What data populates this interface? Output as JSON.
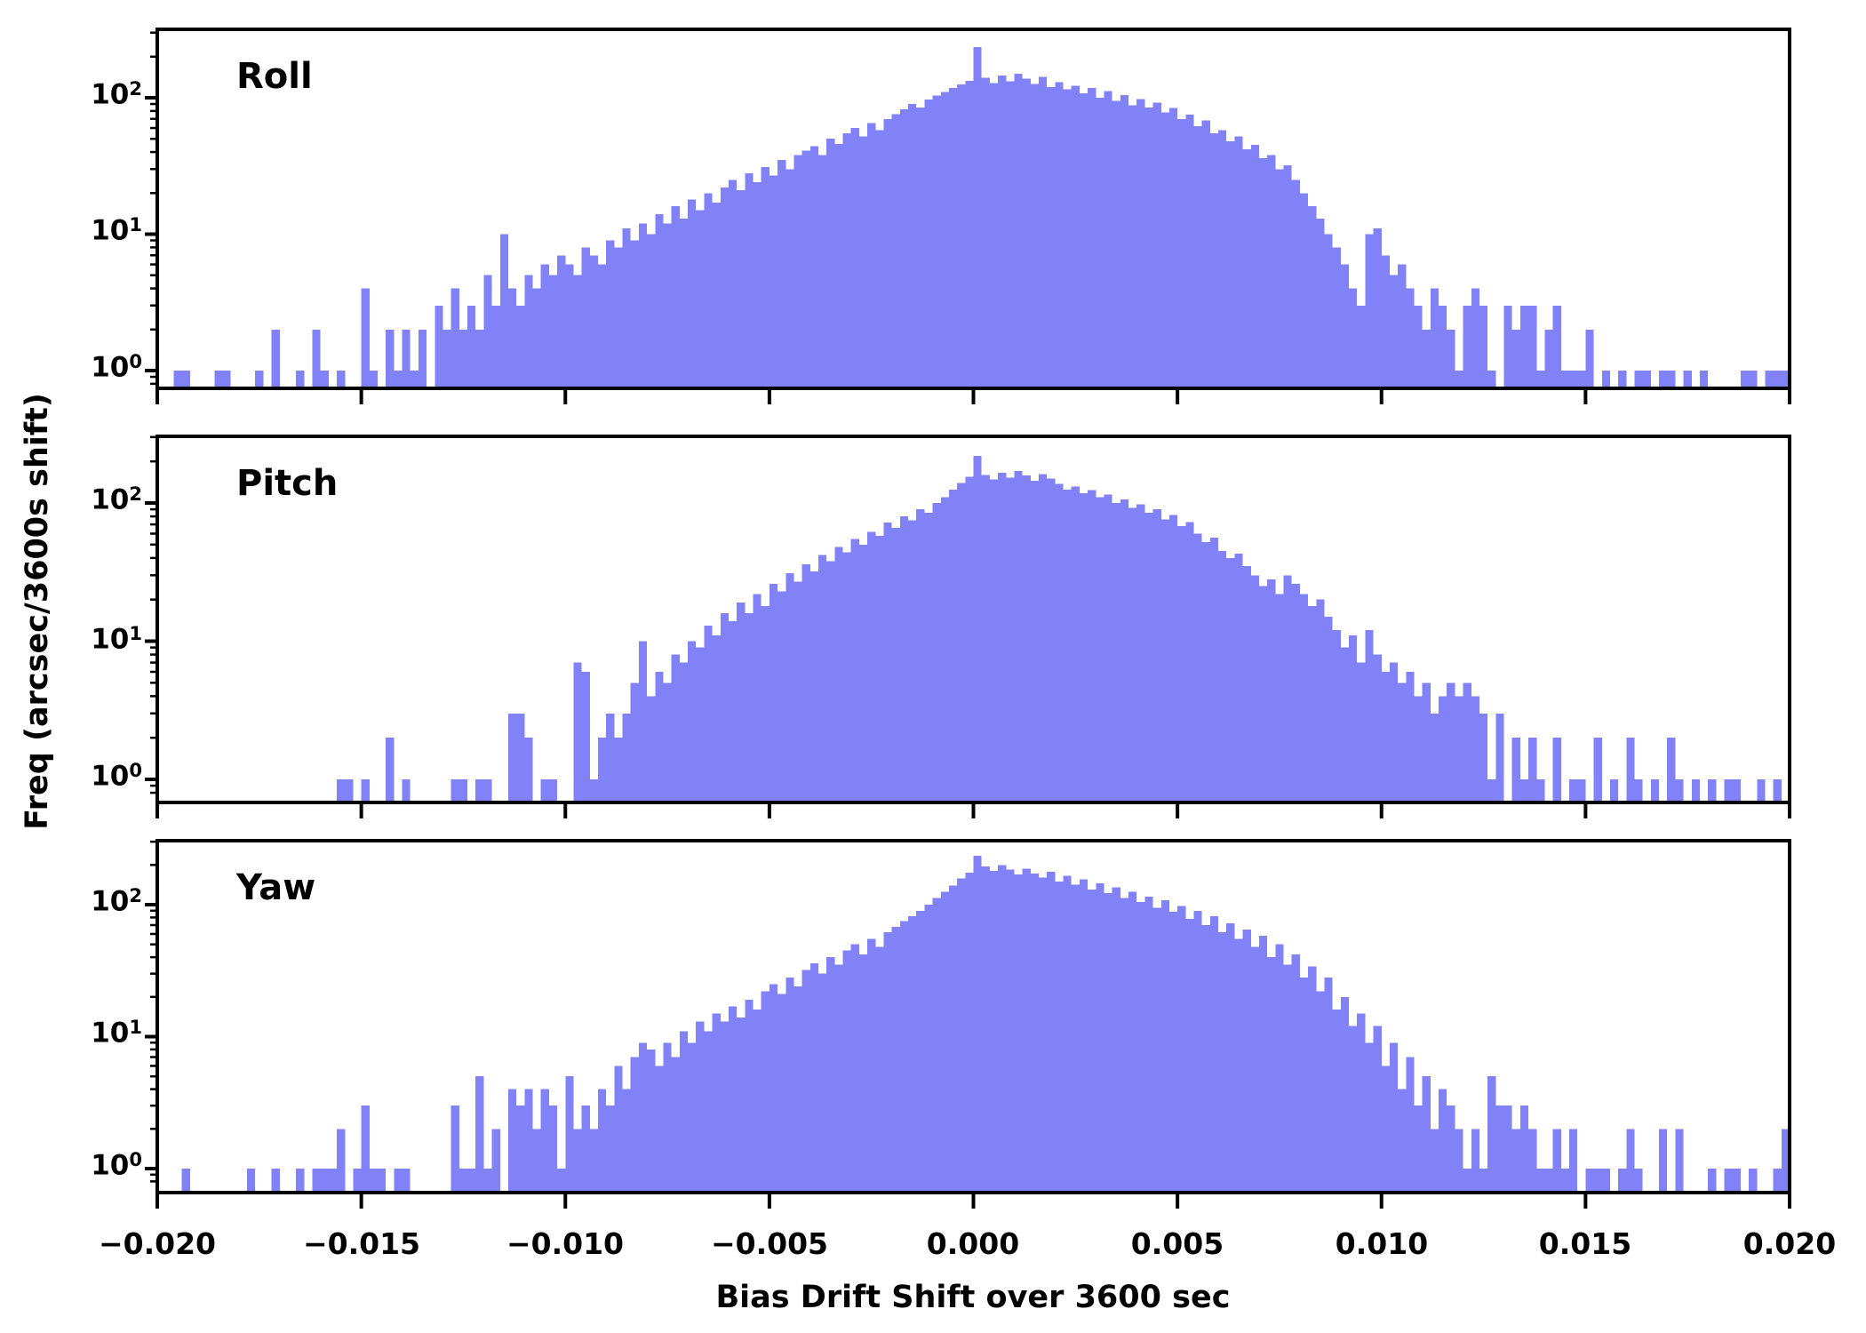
{
  "figure": {
    "background": "#ffffff",
    "bar_color": "#8181f8",
    "axis_color": "#000000"
  },
  "x_axis": {
    "label": "Bias Drift Shift over 3600 sec",
    "tick_labels": [
      "−0.020",
      "−0.015",
      "−0.010",
      "−0.005",
      "0.000",
      "0.005",
      "0.010",
      "0.015",
      "0.020"
    ],
    "tick_values": [
      -0.02,
      -0.015,
      -0.01,
      -0.005,
      0.0,
      0.005,
      0.01,
      0.015,
      0.02
    ],
    "range": [
      -0.02,
      0.02
    ]
  },
  "y_axis": {
    "label": "Freq (arcsec/3600s shift)",
    "scale": "log",
    "tick_labels": [
      {
        "base": "10",
        "exp": "2"
      },
      {
        "base": "10",
        "exp": "1"
      },
      {
        "base": "10",
        "exp": "0"
      }
    ],
    "tick_values": [
      100,
      10,
      1
    ]
  },
  "chart_data": [
    {
      "type": "bar",
      "subtype": "histogram",
      "title": "Roll",
      "xlabel": "Bias Drift Shift over 3600 sec",
      "ylabel": "Freq (arcsec/3600s shift)",
      "yscale": "log",
      "xlim": [
        -0.02,
        0.02
      ],
      "ylim": [
        0.7,
        310
      ],
      "bin_start": -0.02,
      "bin_width": 0.0002,
      "counts": [
        0,
        0,
        1,
        1,
        0,
        0,
        0,
        1,
        1,
        0,
        0,
        0,
        1,
        0,
        2,
        0,
        0,
        1,
        0,
        2,
        1,
        0,
        1,
        0,
        0,
        4,
        1,
        0,
        2,
        1,
        2,
        1,
        2,
        0,
        3,
        2,
        4,
        2,
        3,
        2,
        5,
        3,
        10,
        4,
        3,
        5,
        4,
        6,
        5,
        7,
        6,
        5,
        8,
        7,
        6,
        9,
        8,
        11,
        9,
        12,
        10,
        14,
        12,
        16,
        13,
        18,
        15,
        20,
        17,
        22,
        25,
        21,
        28,
        24,
        31,
        27,
        35,
        30,
        38,
        41,
        44,
        38,
        50,
        46,
        55,
        60,
        52,
        65,
        58,
        70,
        76,
        82,
        90,
        85,
        97,
        104,
        110,
        118,
        125,
        133,
        235,
        140,
        128,
        145,
        132,
        150,
        138,
        126,
        142,
        120,
        130,
        115,
        122,
        108,
        118,
        100,
        112,
        95,
        105,
        88,
        98,
        85,
        92,
        78,
        84,
        70,
        75,
        62,
        68,
        55,
        58,
        48,
        52,
        42,
        45,
        36,
        38,
        30,
        32,
        25,
        20,
        16,
        13,
        10,
        8,
        6,
        4,
        3,
        10,
        11,
        7,
        5,
        6,
        4,
        3,
        2,
        4,
        3,
        2,
        1,
        3,
        4,
        3,
        1,
        0,
        3,
        2,
        3,
        3,
        1,
        2,
        3,
        1,
        1,
        1,
        2,
        0,
        1,
        0,
        1,
        0,
        1,
        1,
        0,
        1,
        1,
        0,
        1,
        0,
        1,
        0,
        0,
        0,
        0,
        1,
        1,
        0,
        1,
        1,
        1
      ]
    },
    {
      "type": "bar",
      "subtype": "histogram",
      "title": "Pitch",
      "xlabel": "Bias Drift Shift over 3600 sec",
      "ylabel": "Freq (arcsec/3600s shift)",
      "yscale": "log",
      "xlim": [
        -0.02,
        0.02
      ],
      "ylim": [
        0.7,
        310
      ],
      "bin_start": -0.02,
      "bin_width": 0.0002,
      "counts": [
        0,
        0,
        0,
        0,
        0,
        0,
        0,
        0,
        0,
        0,
        0,
        0,
        0,
        0,
        0,
        0,
        0,
        0,
        0,
        0,
        0,
        0,
        1,
        1,
        0,
        1,
        0,
        0,
        2,
        0,
        1,
        0,
        0,
        0,
        0,
        0,
        1,
        1,
        0,
        1,
        1,
        0,
        0,
        3,
        3,
        2,
        0,
        1,
        1,
        0,
        0,
        7,
        6,
        1,
        2,
        3,
        2,
        3,
        5,
        10,
        4,
        6,
        5,
        8,
        7,
        10,
        9,
        13,
        11,
        16,
        14,
        19,
        16,
        22,
        18,
        26,
        23,
        31,
        27,
        36,
        32,
        42,
        38,
        48,
        44,
        55,
        50,
        62,
        58,
        72,
        66,
        80,
        75,
        90,
        85,
        100,
        110,
        125,
        140,
        155,
        220,
        160,
        148,
        165,
        152,
        170,
        158,
        145,
        162,
        150,
        138,
        125,
        132,
        118,
        124,
        110,
        115,
        100,
        106,
        92,
        98,
        85,
        90,
        76,
        82,
        68,
        73,
        60,
        52,
        56,
        45,
        40,
        43,
        35,
        30,
        25,
        28,
        22,
        30,
        26,
        22,
        18,
        20,
        15,
        12,
        9,
        11,
        7,
        12,
        8,
        6,
        7,
        5,
        6,
        4,
        5,
        3,
        4,
        5,
        4,
        5,
        4,
        3,
        1,
        3,
        0,
        2,
        1,
        2,
        1,
        0,
        2,
        0,
        1,
        1,
        0,
        2,
        0,
        1,
        0,
        2,
        1,
        0,
        1,
        0,
        2,
        1,
        0,
        1,
        0,
        1,
        0,
        1,
        1,
        0,
        0,
        1,
        0,
        1,
        0
      ]
    },
    {
      "type": "bar",
      "subtype": "histogram",
      "title": "Yaw",
      "xlabel": "Bias Drift Shift over 3600 sec",
      "ylabel": "Freq (arcsec/3600s shift)",
      "yscale": "log",
      "xlim": [
        -0.02,
        0.02
      ],
      "ylim": [
        0.7,
        310
      ],
      "bin_start": -0.02,
      "bin_width": 0.0002,
      "counts": [
        0,
        0,
        0,
        1,
        0,
        0,
        0,
        0,
        0,
        0,
        0,
        1,
        0,
        0,
        1,
        0,
        0,
        1,
        0,
        1,
        1,
        1,
        2,
        0,
        1,
        3,
        1,
        1,
        0,
        1,
        1,
        0,
        0,
        0,
        0,
        0,
        3,
        1,
        1,
        5,
        1,
        2,
        0,
        4,
        3,
        4,
        2,
        4,
        3,
        1,
        5,
        2,
        3,
        2,
        4,
        3,
        6,
        4,
        7,
        9,
        8,
        6,
        9,
        7,
        11,
        9,
        13,
        11,
        15,
        13,
        17,
        14,
        19,
        16,
        22,
        25,
        21,
        28,
        24,
        32,
        36,
        30,
        40,
        35,
        45,
        50,
        42,
        55,
        48,
        62,
        68,
        75,
        82,
        90,
        100,
        112,
        125,
        140,
        158,
        175,
        235,
        195,
        180,
        200,
        185,
        170,
        188,
        172,
        160,
        178,
        150,
        165,
        142,
        155,
        130,
        145,
        122,
        135,
        112,
        125,
        105,
        115,
        95,
        108,
        88,
        98,
        78,
        90,
        70,
        82,
        62,
        72,
        55,
        65,
        48,
        58,
        40,
        50,
        35,
        42,
        28,
        34,
        22,
        28,
        16,
        20,
        12,
        15,
        9,
        12,
        6,
        9,
        4,
        7,
        3,
        5,
        2,
        4,
        3,
        2,
        1,
        2,
        1,
        5,
        3,
        3,
        2,
        3,
        2,
        1,
        1,
        2,
        1,
        2,
        0,
        1,
        1,
        1,
        0,
        1,
        2,
        1,
        0,
        0,
        2,
        0,
        2,
        0,
        0,
        0,
        1,
        0,
        1,
        1,
        0,
        1,
        0,
        0,
        1,
        2
      ]
    }
  ]
}
